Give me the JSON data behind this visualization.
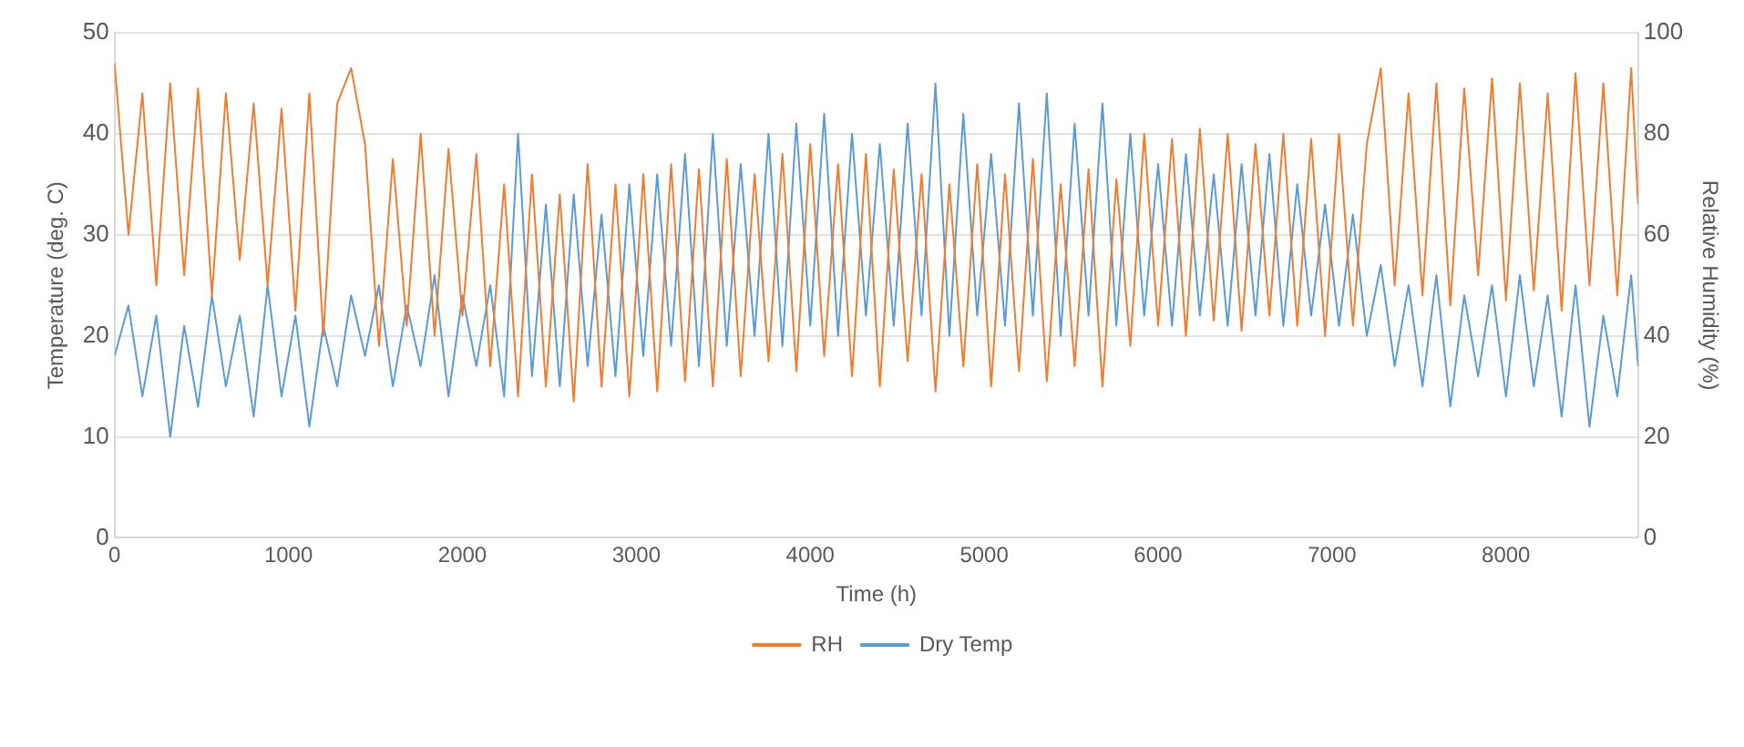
{
  "chart_data": {
    "type": "line",
    "xlabel": "Time (h)",
    "ylabel": "Temperature (deg. C)",
    "y2label": "Relative Humidity (%)",
    "x": [
      0,
      80,
      160,
      240,
      320,
      400,
      480,
      560,
      640,
      720,
      800,
      880,
      960,
      1040,
      1120,
      1200,
      1280,
      1360,
      1440,
      1520,
      1600,
      1680,
      1760,
      1840,
      1920,
      2000,
      2080,
      2160,
      2240,
      2320,
      2400,
      2480,
      2560,
      2640,
      2720,
      2800,
      2880,
      2960,
      3040,
      3120,
      3200,
      3280,
      3360,
      3440,
      3520,
      3600,
      3680,
      3760,
      3840,
      3920,
      4000,
      4080,
      4160,
      4240,
      4320,
      4400,
      4480,
      4560,
      4640,
      4720,
      4800,
      4880,
      4960,
      5040,
      5120,
      5200,
      5280,
      5360,
      5440,
      5520,
      5600,
      5680,
      5760,
      5840,
      5920,
      6000,
      6080,
      6160,
      6240,
      6320,
      6400,
      6480,
      6560,
      6640,
      6720,
      6800,
      6880,
      6960,
      7040,
      7120,
      7200,
      7280,
      7360,
      7440,
      7520,
      7600,
      7680,
      7760,
      7840,
      7920,
      8000,
      8080,
      8160,
      8240,
      8320,
      8400,
      8480,
      8560,
      8640,
      8720,
      8760
    ],
    "series": [
      {
        "name": "Dry Temp",
        "color": "#5b9bd5",
        "values": [
          18,
          23,
          14,
          22,
          10,
          21,
          13,
          24,
          15,
          22,
          12,
          25,
          14,
          22,
          11,
          21,
          15,
          24,
          18,
          25,
          15,
          23,
          17,
          26,
          14,
          24,
          17,
          25,
          14,
          40,
          16,
          33,
          15,
          34,
          17,
          32,
          16,
          35,
          18,
          36,
          19,
          38,
          17,
          40,
          19,
          37,
          20,
          40,
          19,
          41,
          21,
          42,
          20,
          40,
          22,
          39,
          21,
          41,
          22,
          45,
          20,
          42,
          22,
          38,
          21,
          43,
          22,
          44,
          20,
          41,
          22,
          43,
          21,
          40,
          22,
          37,
          21,
          38,
          22,
          36,
          21,
          37,
          22,
          38,
          21,
          35,
          22,
          33,
          21,
          32,
          20,
          27,
          17,
          25,
          15,
          26,
          13,
          24,
          16,
          25,
          14,
          26,
          15,
          24,
          12,
          25,
          11,
          22,
          14,
          26,
          17
        ]
      },
      {
        "name": "RH",
        "color": "#ed7d31",
        "axis": "y2",
        "values": [
          94,
          60,
          88,
          50,
          90,
          52,
          89,
          48,
          88,
          55,
          86,
          50,
          85,
          45,
          88,
          40,
          86,
          93,
          78,
          38,
          75,
          42,
          80,
          40,
          77,
          44,
          76,
          34,
          70,
          28,
          72,
          30,
          68,
          27,
          74,
          30,
          70,
          28,
          72,
          29,
          74,
          31,
          73,
          30,
          75,
          32,
          72,
          35,
          76,
          33,
          78,
          36,
          74,
          32,
          76,
          30,
          73,
          35,
          72,
          29,
          70,
          34,
          74,
          30,
          72,
          33,
          75,
          31,
          70,
          34,
          73,
          30,
          71,
          38,
          80,
          42,
          79,
          40,
          81,
          43,
          80,
          41,
          78,
          44,
          80,
          42,
          79,
          40,
          80,
          42,
          78,
          93,
          50,
          88,
          48,
          90,
          46,
          89,
          52,
          91,
          47,
          90,
          49,
          88,
          45,
          92,
          50,
          90,
          48,
          93,
          66
        ]
      }
    ],
    "xlim": [
      0,
      8760
    ],
    "xticks": [
      0,
      1000,
      2000,
      3000,
      4000,
      5000,
      6000,
      7000,
      8000
    ],
    "ylim": [
      0,
      50
    ],
    "yticks": [
      0,
      10,
      20,
      30,
      40,
      50
    ],
    "y2lim": [
      0,
      100
    ],
    "y2ticks": [
      0,
      20,
      40,
      60,
      80,
      100
    ],
    "grid": "y",
    "legend": "bottom",
    "marker": "none",
    "line_style": "solid"
  }
}
